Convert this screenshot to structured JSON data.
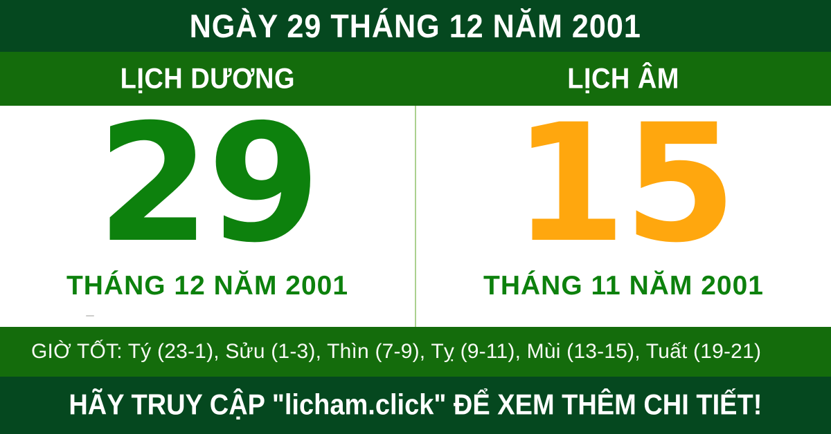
{
  "header": {
    "title": "NGÀY 29 THÁNG 12 NĂM 2001"
  },
  "band": {
    "solar_label": "LỊCH DƯƠNG",
    "lunar_label": "LỊCH ÂM"
  },
  "solar": {
    "day": "29",
    "month_year": "THÁNG 12 NĂM 2001"
  },
  "lunar": {
    "day": "15",
    "month_year": "THÁNG 11 NĂM 2001"
  },
  "good_hours": {
    "text": "GIỜ TỐT: Tý (23-1), Sửu (1-3), Thìn (7-9), Tỵ (9-11), Mùi (13-15), Tuất (19-21)"
  },
  "footer": {
    "cta_text": "HÃY TRUY CẬP \"licham.click\" ĐỂ XEM THÊM CHI TIẾT!"
  },
  "colors": {
    "dark_green": "#05481f",
    "band_green": "#146c0c",
    "solar_green": "#0d810d",
    "lunar_orange": "#ffa70e",
    "divider_green": "#abd18f",
    "text_white": "#ffffff"
  }
}
